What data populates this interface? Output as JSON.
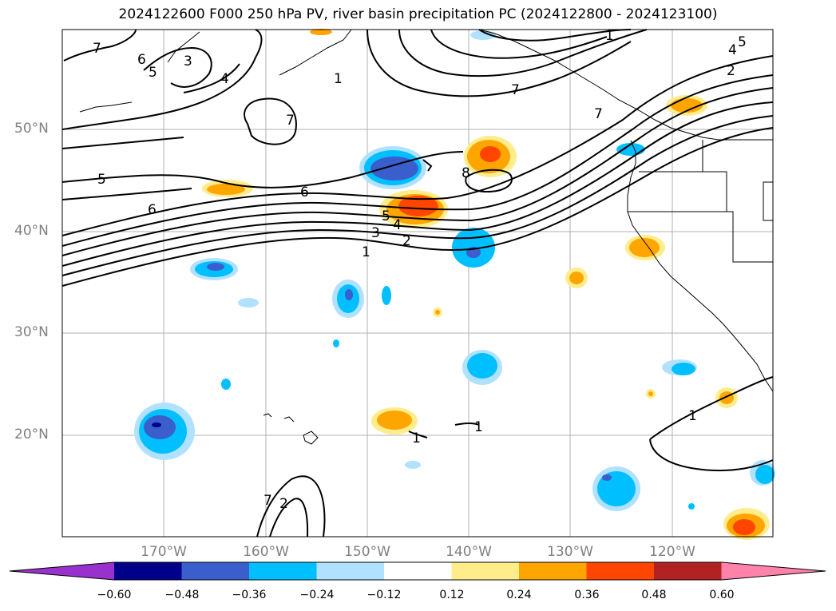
{
  "title": "2024122600 F000 250 hPa PV, river basin precipitation PC (2024122800 - 2024123100)",
  "lat_labels": [
    "50°N",
    "40°N",
    "30°N",
    "20°N"
  ],
  "lon_labels": [
    "170°W",
    "160°W",
    "150°W",
    "140°W",
    "130°W",
    "120°W"
  ],
  "pv_contour_labels": [
    "7",
    "6",
    "5",
    "3",
    "4",
    "7",
    "1",
    "7",
    "1",
    "5",
    "4",
    "2",
    "7",
    "5",
    "6",
    "6",
    "5",
    "4",
    "3",
    "2",
    "1",
    "8",
    "1",
    "1",
    "1",
    "7",
    "2"
  ],
  "colorbar": {
    "ticks": [
      "−0.60",
      "−0.48",
      "−0.36",
      "−0.24",
      "−0.12",
      "0.12",
      "0.24",
      "0.36",
      "0.48",
      "0.60"
    ],
    "colors": [
      "#9932cc",
      "#00008b",
      "#3a5fcd",
      "#00bfff",
      "#b0e2ff",
      "#ffffff",
      "#ffec8b",
      "#ffa500",
      "#ff4500",
      "#b22222",
      "#ff82ab"
    ]
  }
}
